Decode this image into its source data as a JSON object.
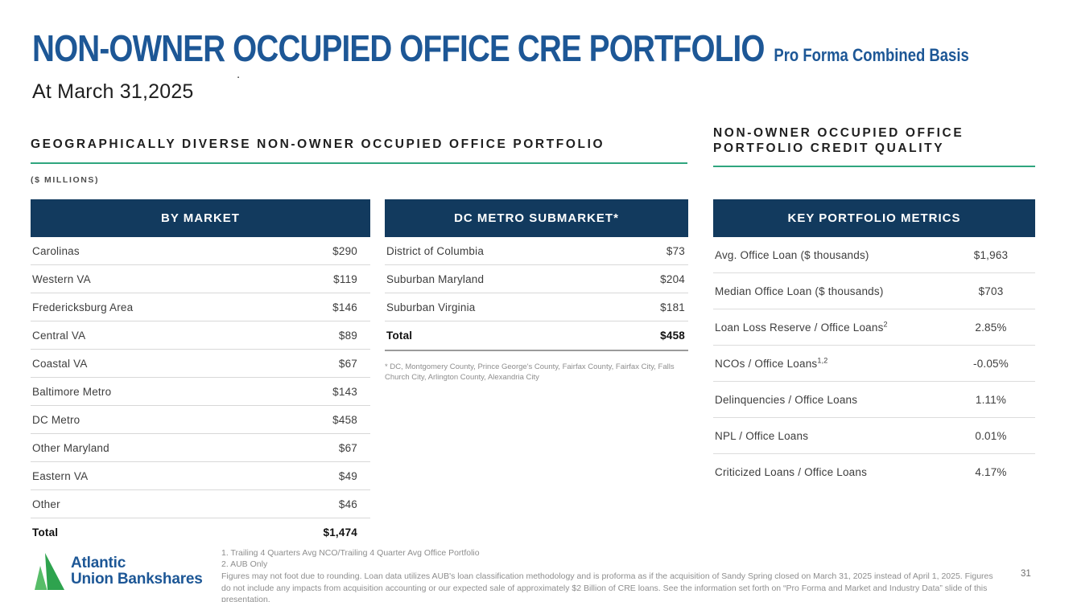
{
  "slide": {
    "title": "NON-OWNER OCCUPIED OFFICE CRE PORTFOLIO",
    "title_suffix": "Pro Forma Combined Basis",
    "subtitle": "At March 31,2025",
    "stray_mark": ".",
    "page_number": "31"
  },
  "left_section": {
    "heading": "GEOGRAPHICALLY DIVERSE NON-OWNER OCCUPIED OFFICE PORTFOLIO",
    "units_label": "($ MILLIONS)"
  },
  "right_section": {
    "heading": "NON-OWNER OCCUPIED OFFICE PORTFOLIO CREDIT QUALITY"
  },
  "tables": {
    "by_market": {
      "header": "BY MARKET",
      "rows": [
        {
          "label": "Carolinas",
          "value": "$290"
        },
        {
          "label": "Western VA",
          "value": "$119"
        },
        {
          "label": "Fredericksburg Area",
          "value": "$146"
        },
        {
          "label": "Central VA",
          "value": "$89"
        },
        {
          "label": "Coastal VA",
          "value": "$67"
        },
        {
          "label": "Baltimore Metro",
          "value": "$143"
        },
        {
          "label": "DC Metro",
          "value": "$458"
        },
        {
          "label": "Other Maryland",
          "value": "$67"
        },
        {
          "label": "Eastern VA",
          "value": "$49"
        },
        {
          "label": "Other",
          "value": "$46"
        }
      ],
      "total": {
        "label": "Total",
        "value": "$1,474"
      }
    },
    "dc_metro": {
      "header": "DC METRO SUBMARKET*",
      "rows": [
        {
          "label": "District of Columbia",
          "value": "$73"
        },
        {
          "label": "Suburban Maryland",
          "value": "$204"
        },
        {
          "label": "Suburban Virginia",
          "value": "$181"
        }
      ],
      "total": {
        "label": "Total",
        "value": "$458"
      },
      "footnote": "* DC, Montgomery County, Prince George's County, Fairfax County, Fairfax City, Falls Church City, Arlington County, Alexandria City"
    },
    "key_metrics": {
      "header": "KEY PORTFOLIO METRICS",
      "rows": [
        {
          "label": "Avg. Office Loan ($ thousands)",
          "value": "$1,963"
        },
        {
          "label": "Median Office Loan ($ thousands)",
          "value": "$703"
        },
        {
          "label": "Loan Loss Reserve / Office Loans",
          "sup": "2",
          "value": "2.85%"
        },
        {
          "label": "NCOs / Office Loans",
          "sup": "1,2",
          "value": "-0.05%"
        },
        {
          "label": "Delinquencies / Office Loans",
          "value": "1.11%"
        },
        {
          "label": "NPL / Office Loans",
          "value": "0.01%"
        },
        {
          "label": "Criticized Loans / Office Loans",
          "value": "4.17%"
        }
      ]
    }
  },
  "footer": {
    "logo_line1": "Atlantic",
    "logo_line2": "Union Bankshares",
    "footnote1": "1. Trailing 4 Quarters Avg NCO/Trailing 4 Quarter Avg Office Portfolio",
    "footnote2": "2.  AUB Only",
    "disclaimer": "Figures may not foot due to rounding.  Loan data utilizes AUB's loan classification methodology and is proforma as if the acquisition of Sandy Spring closed on March 31, 2025 instead of April 1, 2025.  Figures do not include any impacts from acquisition accounting or our expected sale of approximately $2 Billion of CRE loans. See the information set forth on “Pro Forma and Market and Industry Data” slide of this presentation."
  },
  "colors": {
    "title_blue": "#1D5796",
    "table_header_navy": "#123A5E",
    "accent_teal": "#2FA57E",
    "logo_green": "#2EA34E",
    "logo_green_light": "#57BD68",
    "body_text": "#3D3D3D",
    "muted_gray": "#8E8E8E"
  }
}
